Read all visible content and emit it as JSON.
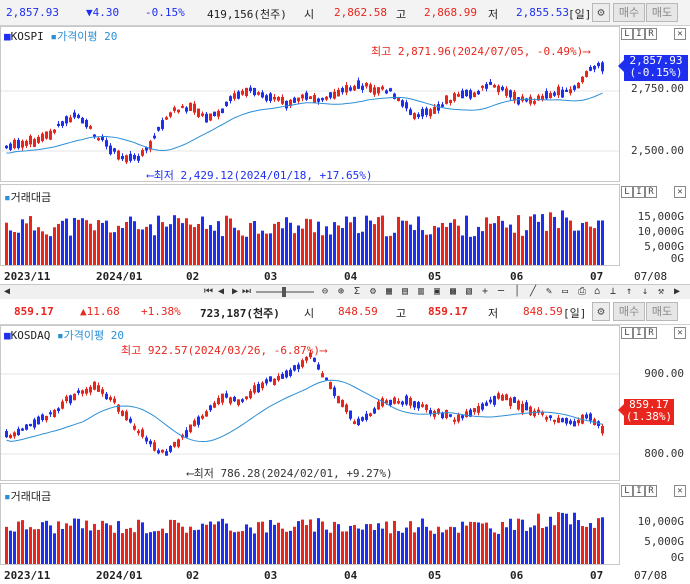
{
  "kospi": {
    "ticker": {
      "price": "2,857.93",
      "change": "▼4.30",
      "pct": "-0.15%",
      "volume": "419,156(천주)",
      "open_label": "시",
      "open": "2,862.58",
      "high_label": "고",
      "high": "2,868.99",
      "low_label": "저",
      "low": "2,855.53",
      "period": "[일]",
      "buy": "매수",
      "sell": "매도"
    },
    "name": "KOSPI",
    "ma_label": "가격이평 20",
    "high_note": "최고 2,871.96(2024/07/05, -0.49%)⟶",
    "low_note": "⟵최저 2,429.12(2024/01/18, +17.65%)",
    "cur_price": "2,857.93",
    "cur_pct": "(-0.15%)",
    "yticks": [
      "2,750.00",
      "2,500.00"
    ],
    "vol_label": "거래대금",
    "vol_ticks": [
      "15,000G",
      "10,000G",
      "5,000G",
      "0G"
    ],
    "x_labels": [
      "2023/11",
      "2024/01",
      "02",
      "03",
      "04",
      "05",
      "06",
      "07",
      "07/08"
    ]
  },
  "kosdaq": {
    "ticker": {
      "price": "859.17",
      "change": "▲11.68",
      "pct": "+1.38%",
      "volume": "723,187(천주)",
      "open_label": "시",
      "open": "848.59",
      "high_label": "고",
      "high": "859.17",
      "low_label": "저",
      "low": "848.59",
      "period": "[일]",
      "buy": "매수",
      "sell": "매도"
    },
    "name": "KOSDAQ",
    "ma_label": "가격이평 20",
    "high_note": "최고 922.57(2024/03/26, -6.87%)⟶",
    "low_note": "⟵최저 786.28(2024/02/01, +9.27%)",
    "cur_price": "859.17",
    "cur_pct": "(1.38%)",
    "yticks": [
      "900.00",
      "800.00"
    ],
    "vol_label": "거래대금",
    "vol_ticks": [
      "10,000G",
      "5,000G",
      "0G"
    ],
    "x_labels": [
      "2023/11",
      "2024/01",
      "02",
      "03",
      "04",
      "05",
      "06",
      "07",
      "07/08"
    ]
  },
  "panel_controls": {
    "a": "L",
    "b": "I",
    "c": "R"
  },
  "toolbar_icons": [
    "zoom-out-icon",
    "zoom-in-icon",
    "settings-icon",
    "indicator-icon",
    "period-icon",
    "compare-icon",
    "table-icon",
    "cross-icon",
    "line-icon",
    "print-icon",
    "save-icon"
  ],
  "colors": {
    "up": "#e8261d",
    "down": "#1f2ff0",
    "ma": "#2b8fd6",
    "accent_kospi": "#1f2ff0",
    "accent_kosdaq": "#e8261d"
  }
}
